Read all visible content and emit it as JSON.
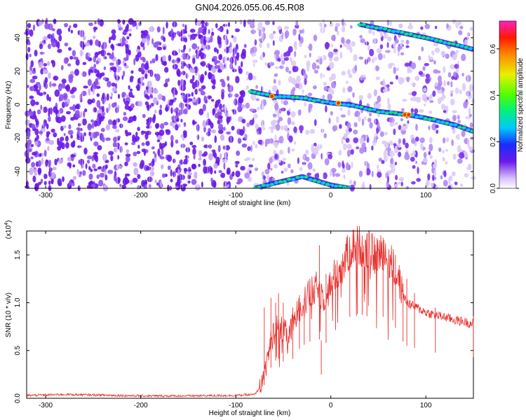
{
  "title": "GN04.2026.055.06.45.R08",
  "chart_data": [
    {
      "type": "heatmap",
      "xlabel": "Height of straight line (km)",
      "ylabel": "Frequency (Hz)",
      "xlim": [
        -320,
        150
      ],
      "ylim": [
        -50,
        50
      ],
      "xticks": [
        -300,
        -200,
        -100,
        0,
        100
      ],
      "yticks": [
        -40,
        -20,
        0,
        20,
        40
      ],
      "colorbar": {
        "label": "Normalized spectral amplitude",
        "range": [
          0.0,
          0.72
        ],
        "ticks": [
          0.0,
          0.2,
          0.4,
          0.6
        ]
      },
      "tracks": [
        {
          "name": "upper",
          "points": [
            [
              30,
              48
            ],
            [
              100,
              40
            ],
            [
              150,
              33
            ]
          ]
        },
        {
          "name": "main",
          "points": [
            [
              -85,
              8
            ],
            [
              -60,
              5
            ],
            [
              -30,
              4
            ],
            [
              0,
              1
            ],
            [
              20,
              0
            ],
            [
              50,
              -4
            ],
            [
              80,
              -6
            ],
            [
              100,
              -8
            ],
            [
              130,
              -12
            ],
            [
              150,
              -16
            ]
          ]
        },
        {
          "name": "lower",
          "points": [
            [
              -80,
              -50
            ],
            [
              -60,
              -47
            ],
            [
              -30,
              -43
            ],
            [
              0,
              -48
            ],
            [
              20,
              -50
            ]
          ]
        }
      ],
      "peaks": [
        [
          -62,
          5
        ],
        [
          8,
          1
        ],
        [
          78,
          -6
        ],
        [
          82,
          -6
        ]
      ]
    },
    {
      "type": "line",
      "xlabel": "Height of straight line (km)",
      "ylabel": "SNR (10 * v/v)",
      "ylabel_multiplier": "(x10",
      "ylabel_exponent": "4",
      "ylabel_close": ")",
      "xlim": [
        -320,
        150
      ],
      "ylim": [
        0.0,
        1.75
      ],
      "xticks": [
        -300,
        -200,
        -100,
        0,
        100
      ],
      "yticks": [
        0.0,
        0.5,
        1.0,
        1.5
      ],
      "ytick_labels": [
        "0.0",
        "0.5",
        "1.0",
        "1.5"
      ],
      "color": "#e8302c",
      "envelope": [
        [
          -320,
          0.03
        ],
        [
          -280,
          0.04
        ],
        [
          -250,
          0.035
        ],
        [
          -200,
          0.025
        ],
        [
          -150,
          0.025
        ],
        [
          -100,
          0.03
        ],
        [
          -80,
          0.04
        ],
        [
          -72,
          0.15
        ],
        [
          -65,
          0.5
        ],
        [
          -60,
          0.7
        ],
        [
          -55,
          0.75
        ],
        [
          -50,
          0.7
        ],
        [
          -45,
          0.65
        ],
        [
          -40,
          0.75
        ],
        [
          -35,
          0.9
        ],
        [
          -30,
          1.0
        ],
        [
          -25,
          1.05
        ],
        [
          -20,
          1.1
        ],
        [
          -15,
          1.15
        ],
        [
          -10,
          1.1
        ],
        [
          -5,
          1.05
        ],
        [
          0,
          1.2
        ],
        [
          5,
          1.3
        ],
        [
          10,
          1.35
        ],
        [
          15,
          1.45
        ],
        [
          20,
          1.55
        ],
        [
          25,
          1.6
        ],
        [
          30,
          1.6
        ],
        [
          35,
          1.58
        ],
        [
          40,
          1.55
        ],
        [
          45,
          1.5
        ],
        [
          50,
          1.5
        ],
        [
          55,
          1.55
        ],
        [
          60,
          1.45
        ],
        [
          65,
          1.4
        ],
        [
          70,
          1.3
        ],
        [
          75,
          1.1
        ],
        [
          80,
          1.0
        ],
        [
          90,
          0.95
        ],
        [
          100,
          0.9
        ],
        [
          110,
          0.87
        ],
        [
          120,
          0.85
        ],
        [
          130,
          0.82
        ],
        [
          140,
          0.8
        ],
        [
          150,
          0.78
        ]
      ],
      "spikes": [
        [
          -70,
          0.95
        ],
        [
          -63,
          1.05
        ],
        [
          -58,
          1.0
        ],
        [
          -55,
          1.1
        ],
        [
          -50,
          1.0
        ],
        [
          -40,
          0.95
        ],
        [
          -33,
          1.08
        ],
        [
          -28,
          1.05
        ],
        [
          -22,
          1.25
        ],
        [
          -12,
          1.6
        ],
        [
          -10,
          0.25
        ],
        [
          -5,
          1.3
        ],
        [
          5,
          1.4
        ],
        [
          20,
          1.6
        ],
        [
          28,
          1.72
        ],
        [
          33,
          1.7
        ],
        [
          38,
          1.72
        ],
        [
          55,
          1.68
        ],
        [
          68,
          1.5
        ],
        [
          76,
          1.2
        ],
        [
          80,
          1.25
        ],
        [
          88,
          1.1
        ],
        [
          110,
          0.95
        ],
        [
          150,
          0.86
        ]
      ]
    }
  ]
}
